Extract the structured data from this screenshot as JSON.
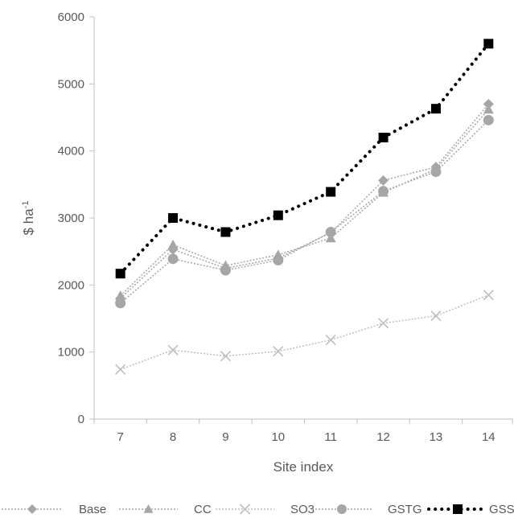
{
  "chart_data": {
    "type": "line",
    "title": "",
    "xlabel": "Site index",
    "ylabel": "$ ha",
    "ylabel_superscript": "-1",
    "ylim": [
      0,
      6000
    ],
    "yticks": [
      0,
      1000,
      2000,
      3000,
      4000,
      5000,
      6000
    ],
    "x": [
      7,
      8,
      9,
      10,
      11,
      12,
      13,
      14
    ],
    "legend_position": "bottom",
    "series": [
      {
        "name": "Base",
        "marker": "diamond",
        "color": "#a6a6a6",
        "line": "dotted",
        "values": [
          1800,
          2530,
          2250,
          2400,
          2780,
          3560,
          3760,
          4700
        ]
      },
      {
        "name": "CC",
        "marker": "triangle",
        "color": "#a6a6a6",
        "line": "dotted",
        "values": [
          1840,
          2600,
          2290,
          2450,
          2700,
          3380,
          3730,
          4620
        ]
      },
      {
        "name": "SO3",
        "marker": "x",
        "color": "#bfbfbf",
        "line": "dotted",
        "values": [
          740,
          1030,
          940,
          1010,
          1180,
          1430,
          1540,
          1850
        ]
      },
      {
        "name": "GSTG",
        "marker": "circle",
        "color": "#a6a6a6",
        "line": "dotted",
        "values": [
          1730,
          2390,
          2220,
          2370,
          2790,
          3400,
          3690,
          4460
        ]
      },
      {
        "name": "GSSE",
        "marker": "square",
        "color": "#000000",
        "line": "bold-dotted",
        "values": [
          2170,
          3000,
          2790,
          3040,
          3390,
          4200,
          4630,
          5600
        ]
      }
    ]
  }
}
